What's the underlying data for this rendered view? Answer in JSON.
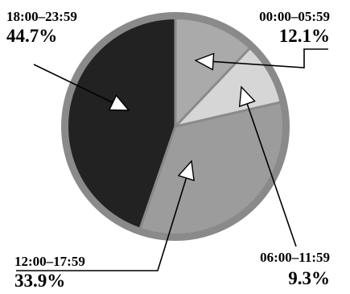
{
  "chart_data": {
    "type": "pie",
    "title": "",
    "start_angle_deg": 0,
    "direction": "clockwise",
    "colors": {
      "rim": "#8a8a8a",
      "separator": "#8a8a8a",
      "arrow_fill": "#ffffff",
      "arrow_stroke": "#000000"
    },
    "slices": [
      {
        "key": "s0000",
        "label": "00:00–05:59",
        "value": 12.1,
        "display": "12.1%",
        "color": "#aaaaaa",
        "label_anchor": "end"
      },
      {
        "key": "s0600",
        "label": "06:00–11:59",
        "value": 9.3,
        "display": "9.3%",
        "color": "#d6d6d6",
        "label_anchor": "end"
      },
      {
        "key": "s1200",
        "label": "12:00–17:59",
        "value": 33.9,
        "display": "33.9%",
        "color": "#9c9c9c",
        "label_anchor": "start"
      },
      {
        "key": "s1800",
        "label": "18:00–23:59",
        "value": 44.7,
        "display": "44.7%",
        "color": "#222222",
        "label_anchor": "start"
      }
    ]
  }
}
